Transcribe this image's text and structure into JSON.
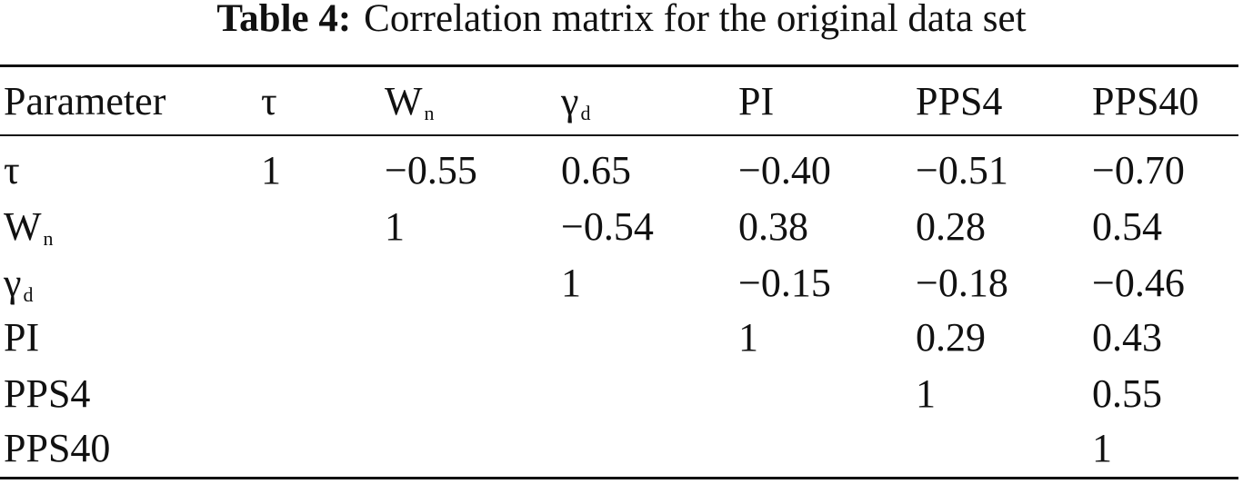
{
  "caption": {
    "label": "Table 4:",
    "text": "Correlation matrix for the original data set"
  },
  "table": {
    "header": [
      {
        "base": "Parameter"
      },
      {
        "base": "τ"
      },
      {
        "base": "W",
        "sub": "n"
      },
      {
        "base": "γ",
        "sub": "d"
      },
      {
        "base": "PI"
      },
      {
        "base": "PPS4"
      },
      {
        "base": "PPS40"
      }
    ],
    "rows": [
      {
        "label": {
          "base": "τ"
        },
        "values": [
          "1",
          "−0.55",
          "0.65",
          "−0.40",
          "−0.51",
          "−0.70"
        ]
      },
      {
        "label": {
          "base": "W",
          "sub": "n"
        },
        "values": [
          "1",
          "−0.54",
          "0.38",
          "0.28",
          "0.54"
        ]
      },
      {
        "label": {
          "base": "γ",
          "sub": "d"
        },
        "values": [
          "1",
          "−0.15",
          "−0.18",
          "−0.46"
        ]
      },
      {
        "label": {
          "base": "PI"
        },
        "values": [
          "1",
          "0.29",
          "0.43"
        ]
      },
      {
        "label": {
          "base": "PPS4"
        },
        "values": [
          "1",
          "0.55"
        ]
      },
      {
        "label": {
          "base": "PPS40"
        },
        "values": [
          "1"
        ]
      }
    ]
  }
}
